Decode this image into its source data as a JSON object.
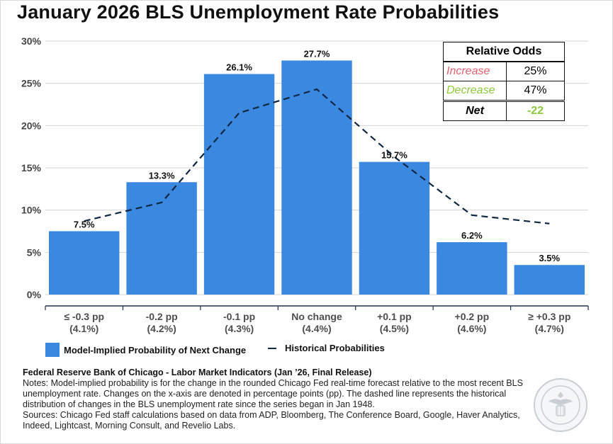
{
  "title": "January 2026 BLS Unemployment Rate Probabilities",
  "chart_data": {
    "type": "bar",
    "title": "January 2026 BLS Unemployment Rate Probabilities",
    "categories": [
      [
        "≤ -0.3 pp",
        "(4.1%)"
      ],
      [
        "-0.2 pp",
        "(4.2%)"
      ],
      [
        "-0.1 pp",
        "(4.3%)"
      ],
      [
        "No change",
        "(4.4%)"
      ],
      [
        "+0.1 pp",
        "(4.5%)"
      ],
      [
        "+0.2 pp",
        "(4.6%)"
      ],
      [
        "≥ +0.3 pp",
        "(4.7%)"
      ]
    ],
    "series": [
      {
        "name": "Model-Implied Probability of Next Change",
        "type": "bar",
        "color": "#3a88e0",
        "values": [
          7.5,
          13.3,
          26.1,
          27.7,
          15.7,
          6.2,
          3.5
        ],
        "labels": [
          "7.5%",
          "13.3%",
          "26.1%",
          "27.7%",
          "15.7%",
          "6.2%",
          "3.5%"
        ]
      },
      {
        "name": "Historical Probabilities",
        "type": "line",
        "style": "dashed",
        "color": "#0f2742",
        "values": [
          8.7,
          10.9,
          21.5,
          24.3,
          16.3,
          9.4,
          8.4
        ]
      }
    ],
    "yticks": [
      "0%",
      "5%",
      "10%",
      "15%",
      "20%",
      "25%",
      "30%"
    ],
    "ylim": [
      0,
      30
    ],
    "grid": true,
    "legend_position": "bottom"
  },
  "odds_table": {
    "header": "Relative Odds",
    "rows": [
      {
        "label": "Increase",
        "value": "25%",
        "color": "#e8606e"
      },
      {
        "label": "Decrease",
        "value": "47%",
        "color": "#8cc83c"
      }
    ],
    "net": {
      "label": "Net",
      "value": "-22",
      "color": "#8cc83c"
    }
  },
  "legend": {
    "bar_label": "Model-Implied Probability of Next Change",
    "line_label": "Historical Probabilities"
  },
  "notes": {
    "source_line": "Federal Reserve Bank of Chicago - Labor Market Indicators (Jan ’26, Final Release)",
    "notes": "Notes: Model-implied probability is for the change in the rounded Chicago Fed real-time forecast relative to the most recent BLS unemployment rate. Changes on the x-axis are denoted in percentage points (pp). The dashed line represents the historical distribution of changes in the BLS unemployment rate since the series began in Jan 1948.",
    "sources": "Sources: Chicago Fed staff calculations based on data from ADP, Bloomberg, The Conference Board, Google, Haver Analytics, Indeed, Lightcast, Morning Consult, and Revelio Labs."
  }
}
